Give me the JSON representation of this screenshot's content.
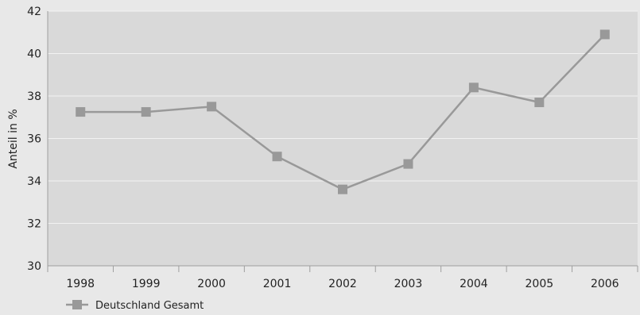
{
  "chart_data": {
    "type": "line",
    "title": "",
    "xlabel": "",
    "ylabel": "Anteil in %",
    "categories": [
      "1998",
      "1999",
      "2000",
      "2001",
      "2002",
      "2003",
      "2004",
      "2005",
      "2006"
    ],
    "series": [
      {
        "name": "Deutschland Gesamt",
        "values": [
          37.25,
          37.25,
          37.5,
          35.15,
          33.6,
          34.8,
          38.4,
          37.7,
          40.9
        ]
      }
    ],
    "ylim": [
      30,
      42
    ],
    "yticks": [
      "30",
      "32",
      "34",
      "36",
      "38",
      "40",
      "42"
    ],
    "grid": true,
    "legend_position": "bottom-left",
    "colors": {
      "background": "#e8e8e8",
      "plot_area": "#d9d9d9",
      "gridline": "#f2f2f2",
      "series": "#999999",
      "text": "#222222"
    }
  }
}
